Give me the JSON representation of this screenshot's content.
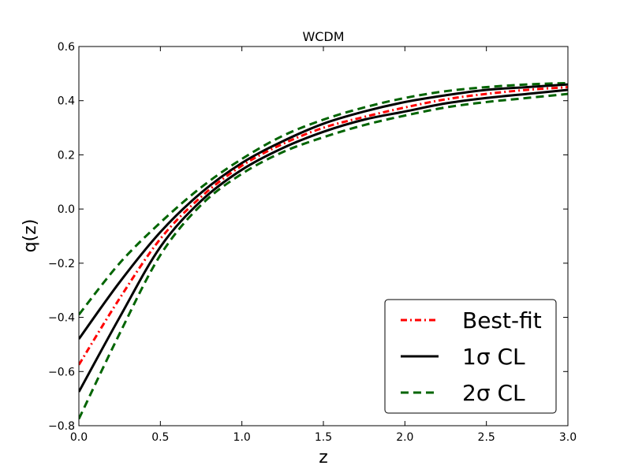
{
  "chart_data": {
    "type": "line",
    "title": "WCDM",
    "xlabel": "z",
    "ylabel": "q(z)",
    "xlim": [
      0.0,
      3.0
    ],
    "ylim": [
      -0.8,
      0.6
    ],
    "xticks": [
      0.0,
      0.5,
      1.0,
      1.5,
      2.0,
      2.5,
      3.0
    ],
    "xtick_labels": [
      "0.0",
      "0.5",
      "1.0",
      "1.5",
      "2.0",
      "2.5",
      "3.0"
    ],
    "yticks": [
      -0.8,
      -0.6,
      -0.4,
      -0.2,
      0.0,
      0.2,
      0.4,
      0.6
    ],
    "ytick_labels": [
      "−0.8",
      "−0.6",
      "−0.4",
      "−0.2",
      "0.0",
      "0.2",
      "0.4",
      "0.6"
    ],
    "grid": false,
    "legend_position": "bottom-right",
    "legend": [
      {
        "label": "Best-fit",
        "color": "#ff0000",
        "style": "dashdot"
      },
      {
        "label": "1σ CL",
        "color": "#000000",
        "style": "solid"
      },
      {
        "label": "2σ CL",
        "color": "#006400",
        "style": "dashed"
      }
    ],
    "series": [
      {
        "name": "Best-fit",
        "role": "best-fit",
        "color": "#ff0000",
        "style": "dashdot",
        "x": [
          0.0,
          0.25,
          0.5,
          0.75,
          1.0,
          1.25,
          1.5,
          1.75,
          2.0,
          2.25,
          2.5,
          2.75,
          3.0
        ],
        "y": [
          -0.575,
          -0.33,
          -0.11,
          0.045,
          0.16,
          0.24,
          0.3,
          0.34,
          0.375,
          0.405,
          0.425,
          0.44,
          0.45
        ]
      },
      {
        "name": "1σ CL",
        "role": "1sigma-upper",
        "color": "#000000",
        "style": "solid",
        "x": [
          0.0,
          0.25,
          0.5,
          0.75,
          1.0,
          1.25,
          1.5,
          1.75,
          2.0,
          2.25,
          2.5,
          2.75,
          3.0
        ],
        "y": [
          -0.48,
          -0.27,
          -0.085,
          0.06,
          0.17,
          0.25,
          0.315,
          0.36,
          0.395,
          0.42,
          0.44,
          0.45,
          0.46
        ]
      },
      {
        "name": "1σ CL",
        "role": "1sigma-lower",
        "color": "#000000",
        "style": "solid",
        "x": [
          0.0,
          0.25,
          0.5,
          0.75,
          1.0,
          1.25,
          1.5,
          1.75,
          2.0,
          2.25,
          2.5,
          2.75,
          3.0
        ],
        "y": [
          -0.675,
          -0.4,
          -0.14,
          0.03,
          0.145,
          0.225,
          0.285,
          0.33,
          0.36,
          0.39,
          0.41,
          0.425,
          0.44
        ]
      },
      {
        "name": "2σ CL",
        "role": "2sigma-upper",
        "color": "#006400",
        "style": "dashed",
        "x": [
          0.0,
          0.25,
          0.5,
          0.75,
          1.0,
          1.25,
          1.5,
          1.75,
          2.0,
          2.25,
          2.5,
          2.75,
          3.0
        ],
        "y": [
          -0.39,
          -0.2,
          -0.05,
          0.08,
          0.185,
          0.27,
          0.33,
          0.375,
          0.41,
          0.435,
          0.45,
          0.46,
          0.465
        ]
      },
      {
        "name": "2σ CL",
        "role": "2sigma-lower",
        "color": "#006400",
        "style": "dashed",
        "x": [
          0.0,
          0.25,
          0.5,
          0.75,
          1.0,
          1.25,
          1.5,
          1.75,
          2.0,
          2.25,
          2.5,
          2.75,
          3.0
        ],
        "y": [
          -0.775,
          -0.46,
          -0.17,
          0.015,
          0.13,
          0.21,
          0.265,
          0.31,
          0.345,
          0.375,
          0.395,
          0.41,
          0.425
        ]
      }
    ]
  }
}
